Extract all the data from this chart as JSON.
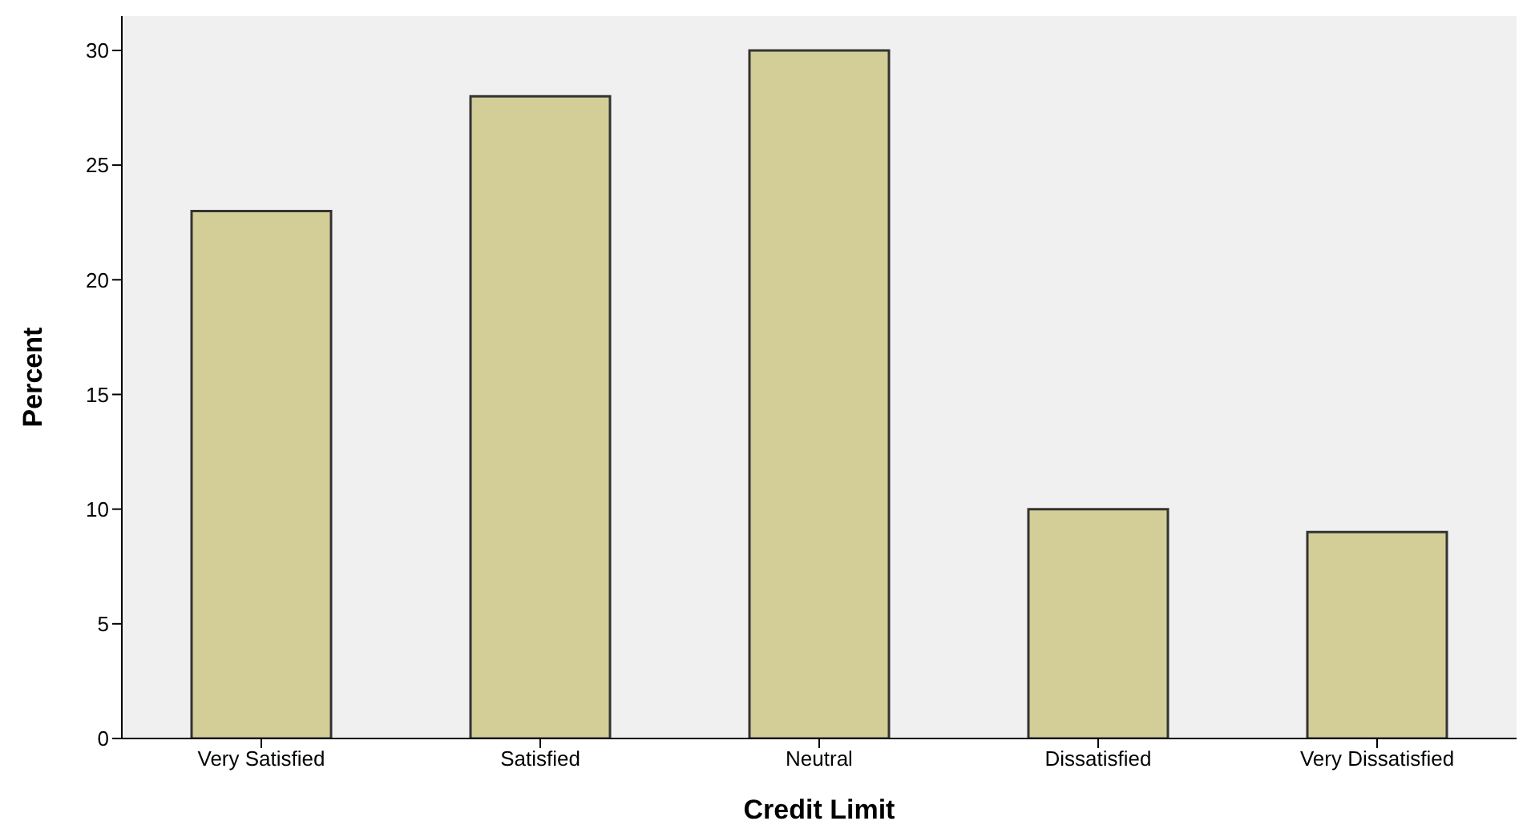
{
  "chart_data": {
    "type": "bar",
    "xlabel": "Credit Limit",
    "ylabel": "Percent",
    "categories": [
      "Very Satisfied",
      "Satisfied",
      "Neutral",
      "Dissatisfied",
      "Very Dissatisfied"
    ],
    "values": [
      23,
      28,
      30,
      10,
      9
    ],
    "color": "#d3ce97",
    "ylim": [
      0,
      31.5
    ],
    "yticks": [
      0,
      5,
      10,
      15,
      20,
      25,
      30
    ],
    "grid": false,
    "legend": false
  }
}
